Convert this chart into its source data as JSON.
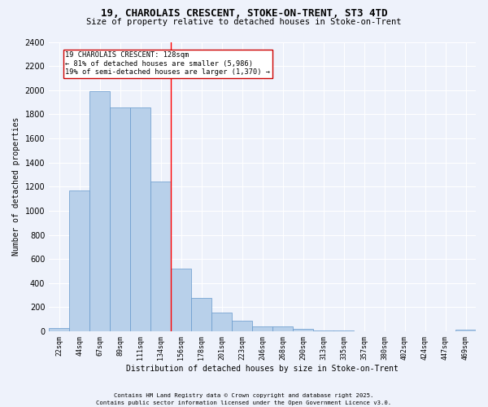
{
  "title_line1": "19, CHAROLAIS CRESCENT, STOKE-ON-TRENT, ST3 4TD",
  "title_line2": "Size of property relative to detached houses in Stoke-on-Trent",
  "xlabel": "Distribution of detached houses by size in Stoke-on-Trent",
  "ylabel": "Number of detached properties",
  "categories": [
    "22sqm",
    "44sqm",
    "67sqm",
    "89sqm",
    "111sqm",
    "134sqm",
    "156sqm",
    "178sqm",
    "201sqm",
    "223sqm",
    "246sqm",
    "268sqm",
    "290sqm",
    "313sqm",
    "335sqm",
    "357sqm",
    "380sqm",
    "402sqm",
    "424sqm",
    "447sqm",
    "469sqm"
  ],
  "values": [
    25,
    1170,
    1990,
    1860,
    1860,
    1240,
    520,
    275,
    155,
    90,
    40,
    38,
    18,
    8,
    4,
    2,
    2,
    1,
    1,
    1,
    15
  ],
  "bar_color": "#b8d0ea",
  "bar_edge_color": "#6699cc",
  "background_color": "#eef2fb",
  "grid_color": "#ffffff",
  "red_line_x": 5.5,
  "annotation_text": "19 CHAROLAIS CRESCENT: 128sqm\n← 81% of detached houses are smaller (5,986)\n19% of semi-detached houses are larger (1,370) →",
  "annotation_box_color": "#ffffff",
  "annotation_box_edge": "#cc0000",
  "ylim": [
    0,
    2400
  ],
  "yticks": [
    0,
    200,
    400,
    600,
    800,
    1000,
    1200,
    1400,
    1600,
    1800,
    2000,
    2200,
    2400
  ],
  "footnote1": "Contains HM Land Registry data © Crown copyright and database right 2025.",
  "footnote2": "Contains public sector information licensed under the Open Government Licence v3.0."
}
